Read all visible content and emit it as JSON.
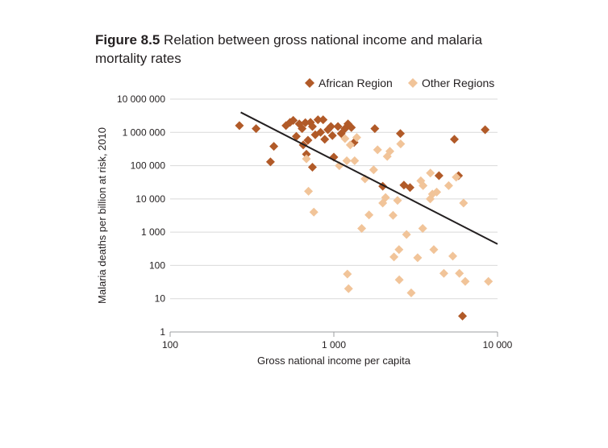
{
  "figure": {
    "number": "Figure 8.5",
    "title": "Relation between gross national income and malaria mortality rates"
  },
  "chart_data": {
    "type": "scatter",
    "title": "Relation between gross national income and malaria mortality rates",
    "xlabel": "Gross national income per capita",
    "ylabel": "Malaria deaths per billion at risk, 2010",
    "x_scale": "log",
    "y_scale": "log",
    "xlim": [
      100,
      10000
    ],
    "ylim": [
      1,
      10000000
    ],
    "x_ticks": [
      {
        "value": 100,
        "label": "100"
      },
      {
        "value": 1000,
        "label": "1 000"
      },
      {
        "value": 10000,
        "label": "10 000"
      }
    ],
    "y_ticks": [
      {
        "value": 1,
        "label": "1"
      },
      {
        "value": 10,
        "label": "10"
      },
      {
        "value": 100,
        "label": "100"
      },
      {
        "value": 1000,
        "label": "1 000"
      },
      {
        "value": 10000,
        "label": "10 000"
      },
      {
        "value": 100000,
        "label": "100 000"
      },
      {
        "value": 1000000,
        "label": "1 000 000"
      },
      {
        "value": 10000000,
        "label": "10 000 000"
      }
    ],
    "grid": "horizontal",
    "legend_position": "top-right",
    "series": [
      {
        "name": "African Region",
        "color": "#b15a28",
        "marker": "diamond",
        "points": [
          [
            265,
            1600000
          ],
          [
            335,
            1300000
          ],
          [
            430,
            380000
          ],
          [
            410,
            130000
          ],
          [
            510,
            1600000
          ],
          [
            540,
            2000000
          ],
          [
            565,
            2300000
          ],
          [
            590,
            760000
          ],
          [
            615,
            1800000
          ],
          [
            640,
            1300000
          ],
          [
            650,
            420000
          ],
          [
            670,
            1950000
          ],
          [
            680,
            220000
          ],
          [
            695,
            580000
          ],
          [
            720,
            2000000
          ],
          [
            740,
            1500000
          ],
          [
            740,
            90000
          ],
          [
            770,
            850000
          ],
          [
            800,
            2400000
          ],
          [
            830,
            1000000
          ],
          [
            860,
            2400000
          ],
          [
            880,
            620000
          ],
          [
            920,
            1200000
          ],
          [
            960,
            1500000
          ],
          [
            980,
            800000
          ],
          [
            1000,
            180000
          ],
          [
            1060,
            1500000
          ],
          [
            1110,
            920000
          ],
          [
            1170,
            1300000
          ],
          [
            1220,
            1800000
          ],
          [
            1280,
            1400000
          ],
          [
            1330,
            500000
          ],
          [
            1780,
            1300000
          ],
          [
            1990,
            24000
          ],
          [
            2550,
            920000
          ],
          [
            2680,
            26000
          ],
          [
            2920,
            22000
          ],
          [
            4390,
            50000
          ],
          [
            5450,
            620000
          ],
          [
            5780,
            50000
          ],
          [
            6110,
            3
          ],
          [
            8400,
            1200000
          ]
        ]
      },
      {
        "name": "Other Regions",
        "color": "#f1c499",
        "marker": "diamond",
        "points": [
          [
            680,
            160000
          ],
          [
            700,
            17000
          ],
          [
            755,
            4000
          ],
          [
            1080,
            100000
          ],
          [
            1170,
            650000
          ],
          [
            1200,
            140000
          ],
          [
            1210,
            55
          ],
          [
            1230,
            20
          ],
          [
            1260,
            420000
          ],
          [
            1340,
            140000
          ],
          [
            1380,
            700000
          ],
          [
            1480,
            1300
          ],
          [
            1550,
            40000
          ],
          [
            1640,
            3300
          ],
          [
            1750,
            75000
          ],
          [
            1850,
            300000
          ],
          [
            1990,
            7500
          ],
          [
            2070,
            11000
          ],
          [
            2120,
            190000
          ],
          [
            2200,
            270000
          ],
          [
            2300,
            3200
          ],
          [
            2330,
            180
          ],
          [
            2450,
            9000
          ],
          [
            2500,
            300
          ],
          [
            2510,
            37
          ],
          [
            2560,
            450000
          ],
          [
            2780,
            850
          ],
          [
            2970,
            15
          ],
          [
            3250,
            170
          ],
          [
            3400,
            35000
          ],
          [
            3490,
            1300
          ],
          [
            3510,
            25000
          ],
          [
            3880,
            10000
          ],
          [
            3890,
            60000
          ],
          [
            4000,
            14000
          ],
          [
            4080,
            300
          ],
          [
            4250,
            16000
          ],
          [
            4700,
            58
          ],
          [
            5030,
            25000
          ],
          [
            5330,
            190
          ],
          [
            5590,
            45000
          ],
          [
            5850,
            58
          ],
          [
            6200,
            7500
          ],
          [
            6350,
            33
          ],
          [
            8800,
            33
          ]
        ]
      }
    ],
    "trend_line": {
      "from": [
        270,
        4000000
      ],
      "to": [
        10000,
        440
      ]
    }
  }
}
